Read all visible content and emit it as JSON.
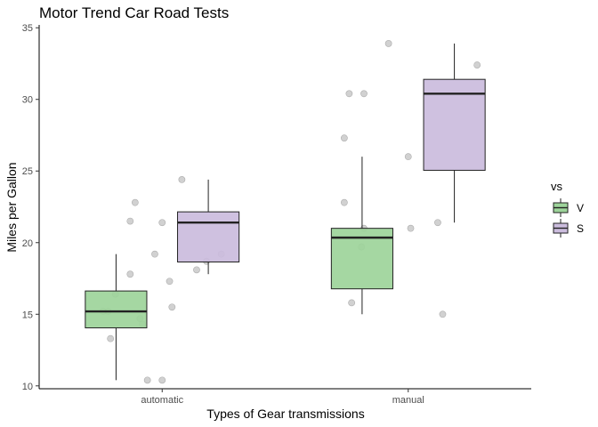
{
  "chart_data": {
    "type": "boxplot",
    "title": "Motor Trend Car Road Tests",
    "xlabel": "Types of Gear transmissions",
    "ylabel": "Miles per Gallon",
    "ylim": [
      9.8,
      35.2
    ],
    "yticks": [
      10,
      15,
      20,
      25,
      30,
      35
    ],
    "categories": [
      "automatic",
      "manual"
    ],
    "legend": {
      "title": "vs",
      "position": "right",
      "entries": [
        {
          "label": "V",
          "color": "#9dd49a"
        },
        {
          "label": "S",
          "color": "#cbbcdd"
        }
      ]
    },
    "boxes": [
      {
        "category": "automatic",
        "group": "V",
        "min": 10.4,
        "q1": 14.05,
        "median": 15.2,
        "q3": 16.625,
        "max": 19.2
      },
      {
        "category": "automatic",
        "group": "S",
        "min": 17.8,
        "q1": 18.65,
        "median": 21.4,
        "q3": 22.15,
        "max": 24.4
      },
      {
        "category": "manual",
        "group": "V",
        "min": 15.0,
        "q1": 16.775,
        "median": 20.35,
        "q3": 21.0,
        "max": 26.0
      },
      {
        "category": "manual",
        "group": "S",
        "min": 21.4,
        "q1": 25.05,
        "median": 30.4,
        "q3": 31.4,
        "max": 33.9
      }
    ],
    "points": [
      {
        "category": "automatic",
        "jitter": -0.24,
        "y": 15.2
      },
      {
        "category": "automatic",
        "jitter": -0.22,
        "y": 15.2
      },
      {
        "category": "automatic",
        "jitter": -0.21,
        "y": 13.3
      },
      {
        "category": "automatic",
        "jitter": -0.19,
        "y": 16.4
      },
      {
        "category": "automatic",
        "jitter": -0.11,
        "y": 22.8
      },
      {
        "category": "automatic",
        "jitter": -0.13,
        "y": 21.5
      },
      {
        "category": "automatic",
        "jitter": -0.13,
        "y": 17.8
      },
      {
        "category": "automatic",
        "jitter": -0.09,
        "y": 14.7
      },
      {
        "category": "automatic",
        "jitter": -0.08,
        "y": 14.3
      },
      {
        "category": "automatic",
        "jitter": -0.06,
        "y": 10.4
      },
      {
        "category": "automatic",
        "jitter": -0.03,
        "y": 19.2
      },
      {
        "category": "automatic",
        "jitter": 0.0,
        "y": 21.4
      },
      {
        "category": "automatic",
        "jitter": 0.03,
        "y": 17.3
      },
      {
        "category": "automatic",
        "jitter": 0.04,
        "y": 15.5
      },
      {
        "category": "automatic",
        "jitter": 0.0,
        "y": 10.4
      },
      {
        "category": "automatic",
        "jitter": 0.08,
        "y": 24.4
      },
      {
        "category": "automatic",
        "jitter": 0.14,
        "y": 18.1
      },
      {
        "category": "automatic",
        "jitter": 0.18,
        "y": 18.7
      },
      {
        "category": "automatic",
        "jitter": 0.24,
        "y": 19.2
      },
      {
        "category": "manual",
        "jitter": -0.24,
        "y": 30.4
      },
      {
        "category": "manual",
        "jitter": -0.26,
        "y": 27.3
      },
      {
        "category": "manual",
        "jitter": -0.26,
        "y": 22.8
      },
      {
        "category": "manual",
        "jitter": -0.23,
        "y": 15.8
      },
      {
        "category": "manual",
        "jitter": -0.18,
        "y": 30.4
      },
      {
        "category": "manual",
        "jitter": -0.18,
        "y": 21.0
      },
      {
        "category": "manual",
        "jitter": -0.19,
        "y": 19.7
      },
      {
        "category": "manual",
        "jitter": -0.08,
        "y": 33.9
      },
      {
        "category": "manual",
        "jitter": 0.01,
        "y": 21.0
      },
      {
        "category": "manual",
        "jitter": 0.12,
        "y": 21.4
      },
      {
        "category": "manual",
        "jitter": 0.14,
        "y": 15.0
      },
      {
        "category": "manual",
        "jitter": 0.0,
        "y": 26.0
      },
      {
        "category": "manual",
        "jitter": 0.28,
        "y": 32.4
      }
    ]
  }
}
